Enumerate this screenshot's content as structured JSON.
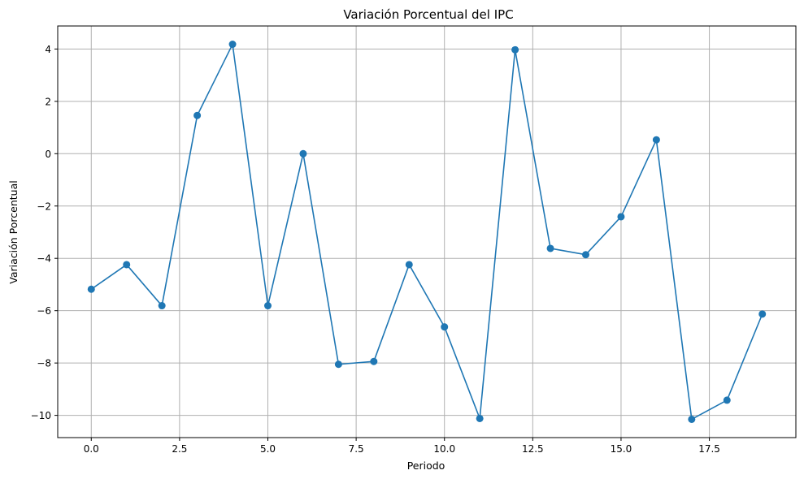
{
  "chart_data": {
    "type": "line",
    "title": "Variación Porcentual del IPC",
    "xlabel": "Periodo",
    "ylabel": "Variación Porcentual",
    "x": [
      0,
      1,
      2,
      3,
      4,
      5,
      6,
      7,
      8,
      9,
      10,
      11,
      12,
      13,
      14,
      15,
      16,
      17,
      18,
      19
    ],
    "series": [
      {
        "values": [
          -5.18,
          -4.24,
          -5.81,
          1.46,
          4.18,
          -5.81,
          0.0,
          -8.05,
          -7.94,
          -4.24,
          -6.62,
          -10.12,
          3.97,
          -3.62,
          -3.86,
          -2.41,
          0.53,
          -10.15,
          -9.42,
          -6.13
        ],
        "color": "#1f77b4",
        "marker": "circle"
      }
    ],
    "xlim": [
      -0.95,
      19.95
    ],
    "ylim": [
      -10.85,
      4.88
    ],
    "xticks": [
      0.0,
      2.5,
      5.0,
      7.5,
      10.0,
      12.5,
      15.0,
      17.5
    ],
    "xtick_labels": [
      "0.0",
      "2.5",
      "5.0",
      "7.5",
      "10.0",
      "12.5",
      "15.0",
      "17.5"
    ],
    "yticks": [
      -10,
      -8,
      -6,
      -4,
      -2,
      0,
      2,
      4
    ],
    "ytick_labels": [
      "−10",
      "−8",
      "−6",
      "−4",
      "−2",
      "0",
      "2",
      "4"
    ],
    "grid": true,
    "grid_color": "#b0b0b0"
  }
}
